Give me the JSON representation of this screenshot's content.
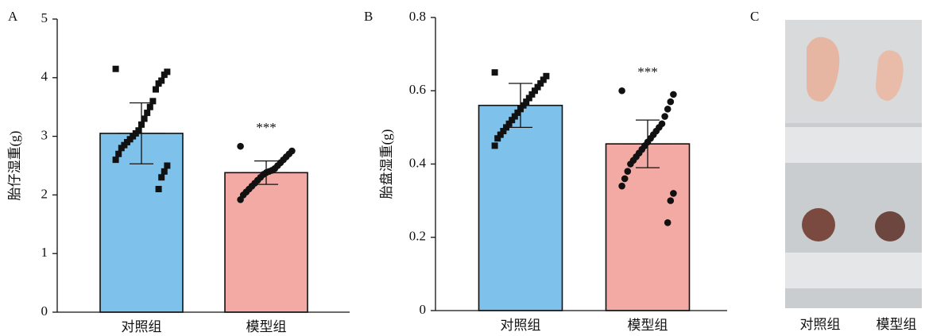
{
  "chart_data": [
    {
      "type": "bar",
      "panel": "A",
      "ylabel": "胎仔湿重(g)",
      "categories": [
        "对照组",
        "模型组"
      ],
      "values": [
        3.05,
        2.38
      ],
      "errors": [
        0.52,
        0.2
      ],
      "colors": [
        "#7ec2ec",
        "#f3aaa5"
      ],
      "markers": [
        "square",
        "circle"
      ],
      "points": [
        [
          4.15,
          4.1,
          4.05,
          3.95,
          3.9,
          3.8,
          3.6,
          3.5,
          3.4,
          3.3,
          3.2,
          3.1,
          3.05,
          3.0,
          2.95,
          2.9,
          2.85,
          2.8,
          2.7,
          2.6,
          2.5,
          2.4,
          2.3,
          2.1
        ],
        [
          2.83,
          2.75,
          2.7,
          2.65,
          2.6,
          2.55,
          2.5,
          2.45,
          2.42,
          2.4,
          2.38,
          2.35,
          2.3,
          2.25,
          2.2,
          2.15,
          2.1,
          2.05,
          2.0,
          1.92
        ]
      ],
      "annotation": "***",
      "ylim": [
        0,
        5
      ],
      "yticks": [
        0,
        1,
        2,
        3,
        4,
        5
      ]
    },
    {
      "type": "bar",
      "panel": "B",
      "ylabel": "胎盘湿重(g)",
      "categories": [
        "对照组",
        "模型组"
      ],
      "values": [
        0.56,
        0.455
      ],
      "errors": [
        0.06,
        0.065
      ],
      "colors": [
        "#7ec2ec",
        "#f3aaa5"
      ],
      "markers": [
        "square",
        "circle"
      ],
      "points": [
        [
          0.65,
          0.64,
          0.63,
          0.62,
          0.61,
          0.6,
          0.59,
          0.58,
          0.57,
          0.56,
          0.55,
          0.54,
          0.53,
          0.52,
          0.51,
          0.5,
          0.49,
          0.48,
          0.47,
          0.45
        ],
        [
          0.6,
          0.59,
          0.57,
          0.55,
          0.53,
          0.51,
          0.5,
          0.49,
          0.48,
          0.47,
          0.46,
          0.45,
          0.44,
          0.43,
          0.42,
          0.41,
          0.4,
          0.38,
          0.36,
          0.34,
          0.32,
          0.3,
          0.24
        ]
      ],
      "annotation": "***",
      "ylim": [
        0,
        0.8
      ],
      "yticks": [
        0,
        0.2,
        0.4,
        0.6,
        0.8
      ]
    }
  ],
  "photo": {
    "panel": "C",
    "captions": [
      "对照组",
      "模型组"
    ]
  }
}
